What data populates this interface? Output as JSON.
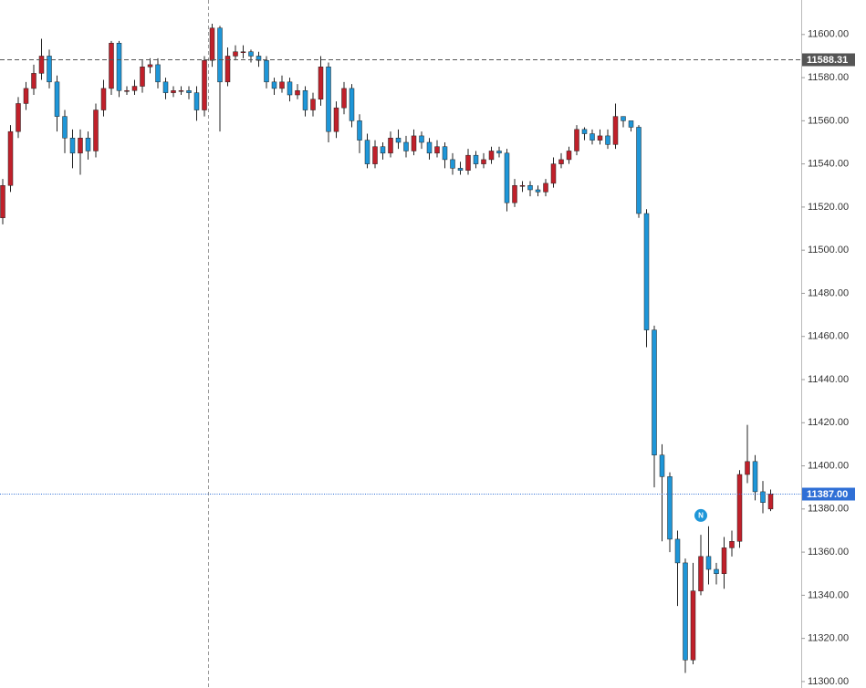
{
  "chart_data": {
    "type": "candlestick",
    "up_color": "#c0202a",
    "down_color": "#1e96d8",
    "ylim": [
      11297,
      11616
    ],
    "yticks": [
      {
        "value": 11300,
        "label": "11300.00"
      },
      {
        "value": 11320,
        "label": "11320.00"
      },
      {
        "value": 11340,
        "label": "11340.00"
      },
      {
        "value": 11360,
        "label": "11360.00"
      },
      {
        "value": 11380,
        "label": "11380.00"
      },
      {
        "value": 11400,
        "label": "11400.00"
      },
      {
        "value": 11420,
        "label": "11420.00"
      },
      {
        "value": 11440,
        "label": "11440.00"
      },
      {
        "value": 11460,
        "label": "11460.00"
      },
      {
        "value": 11480,
        "label": "11480.00"
      },
      {
        "value": 11500,
        "label": "11500.00"
      },
      {
        "value": 11520,
        "label": "11520.00"
      },
      {
        "value": 11540,
        "label": "11540.00"
      },
      {
        "value": 11560,
        "label": "11560.00"
      },
      {
        "value": 11580,
        "label": "11580.00"
      },
      {
        "value": 11600,
        "label": "11600.00"
      }
    ],
    "price_lines": [
      {
        "value": 11588.31,
        "color": "#555555",
        "style": "dashed"
      },
      {
        "value": 11387,
        "label": "11387.00",
        "color": "#2f6fd6",
        "style": "dotted"
      }
    ],
    "annotations": [
      {
        "text": "N",
        "candle": 90,
        "value": 11377
      }
    ],
    "open": [
      11515,
      11530,
      11555,
      11568,
      11575,
      11582,
      11590,
      11578,
      11562,
      11552,
      11545,
      11552,
      11546,
      11565,
      11575,
      11596,
      11574,
      11574,
      11576,
      11585,
      11586,
      11578,
      11573,
      11574,
      11574,
      11573,
      11565,
      11588,
      11603,
      11578,
      11590,
      11592,
      11592,
      11590,
      11588,
      11578,
      11575,
      11578,
      11572,
      11574,
      11565,
      11570,
      11585,
      11555,
      11566,
      11575,
      11560,
      11551,
      11540,
      11548,
      11545,
      11552,
      11550,
      11546,
      11553,
      11550,
      11545,
      11548,
      11542,
      11538,
      11537,
      11544,
      11540,
      11542,
      11546,
      11545,
      11522,
      11530,
      11530,
      11528,
      11527,
      11531,
      11540,
      11542,
      11546,
      11556,
      11554,
      11551,
      11553,
      11549,
      11562,
      11560,
      11557,
      11517,
      11463,
      11405,
      11395,
      11366,
      11355,
      11310,
      11342,
      11358,
      11352,
      11350,
      11362,
      11365,
      11396,
      11402,
      11388,
      11380
    ],
    "high": [
      11533,
      11558,
      11571,
      11578,
      11586,
      11598,
      11593,
      11581,
      11565,
      11556,
      11556,
      11555,
      11568,
      11579,
      11597,
      11597,
      11576,
      11579,
      11588,
      11589,
      11589,
      11580,
      11576,
      11576,
      11576,
      11576,
      11590,
      11605,
      11604,
      11594,
      11595,
      11595,
      11593,
      11592,
      11590,
      11580,
      11581,
      11580,
      11577,
      11576,
      11573,
      11590,
      11587,
      11569,
      11578,
      11577,
      11563,
      11554,
      11551,
      11550,
      11555,
      11556,
      11553,
      11556,
      11555,
      11552,
      11551,
      11550,
      11545,
      11541,
      11547,
      11546,
      11545,
      11548,
      11548,
      11547,
      11533,
      11532,
      11532,
      11530,
      11533,
      11543,
      11545,
      11548,
      11558,
      11557,
      11556,
      11556,
      11556,
      11568,
      11562,
      11559,
      11558,
      11519,
      11465,
      11410,
      11397,
      11370,
      11357,
      11355,
      11368,
      11372,
      11355,
      11367,
      11370,
      11398,
      11419,
      11405,
      11393,
      11389
    ],
    "low": [
      11512,
      11527,
      11552,
      11565,
      11572,
      11579,
      11575,
      11555,
      11545,
      11538,
      11535,
      11542,
      11543,
      11562,
      11572,
      11571,
      11572,
      11572,
      11573,
      11582,
      11575,
      11570,
      11571,
      11572,
      11570,
      11560,
      11562,
      11585,
      11555,
      11576,
      11588,
      11589,
      11587,
      11585,
      11575,
      11572,
      11573,
      11569,
      11570,
      11562,
      11562,
      11567,
      11550,
      11552,
      11563,
      11557,
      11545,
      11538,
      11538,
      11542,
      11543,
      11547,
      11543,
      11544,
      11547,
      11542,
      11543,
      11538,
      11535,
      11535,
      11535,
      11538,
      11538,
      11540,
      11543,
      11518,
      11520,
      11527,
      11525,
      11525,
      11525,
      11529,
      11538,
      11540,
      11544,
      11551,
      11549,
      11549,
      11547,
      11547,
      11557,
      11555,
      11515,
      11455,
      11390,
      11365,
      11360,
      11335,
      11304,
      11308,
      11340,
      11345,
      11345,
      11343,
      11358,
      11362,
      11392,
      11384,
      11378,
      11379
    ],
    "close": [
      11530,
      11555,
      11568,
      11575,
      11582,
      11590,
      11578,
      11562,
      11552,
      11545,
      11552,
      11546,
      11565,
      11575,
      11596,
      11574,
      11574,
      11576,
      11585,
      11586,
      11578,
      11573,
      11574,
      11574,
      11573,
      11565,
      11588,
      11603,
      11578,
      11590,
      11592,
      11592,
      11590,
      11588,
      11578,
      11575,
      11578,
      11572,
      11574,
      11565,
      11570,
      11585,
      11555,
      11566,
      11575,
      11560,
      11551,
      11540,
      11548,
      11545,
      11552,
      11550,
      11546,
      11553,
      11550,
      11545,
      11548,
      11542,
      11538,
      11537,
      11544,
      11540,
      11542,
      11546,
      11545,
      11522,
      11530,
      11530,
      11528,
      11527,
      11531,
      11540,
      11542,
      11546,
      11556,
      11554,
      11551,
      11553,
      11549,
      11562,
      11560,
      11557,
      11517,
      11463,
      11405,
      11395,
      11366,
      11355,
      11310,
      11342,
      11358,
      11352,
      11350,
      11362,
      11365,
      11396,
      11402,
      11388,
      11383,
      11387
    ]
  }
}
